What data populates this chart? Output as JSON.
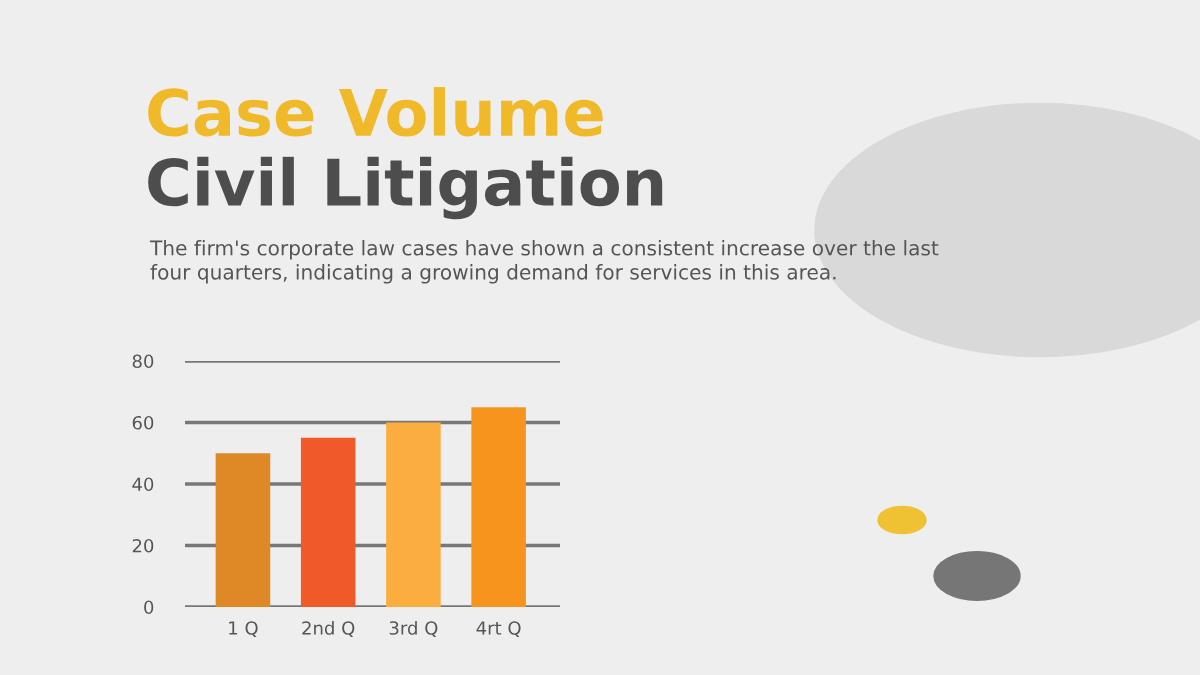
{
  "chart_data": {
    "type": "bar",
    "title": "Case Volume",
    "subtitle": "Civil Litigation",
    "annotations": [
      "The firm's corporate law cases have shown a consistent increase over the last four quarters, indicating a growing demand for services in this area."
    ],
    "categories": [
      "1 Q",
      "2nd Q",
      "3rd Q",
      "4rt Q"
    ],
    "values": [
      50,
      55,
      60,
      65
    ],
    "colors": [
      "#de8826",
      "#f05a28",
      "#fbad40",
      "#f7941e"
    ],
    "ylim": [
      0,
      80
    ],
    "yticks": [
      0,
      20,
      40,
      60,
      80
    ],
    "grid": "y"
  }
}
